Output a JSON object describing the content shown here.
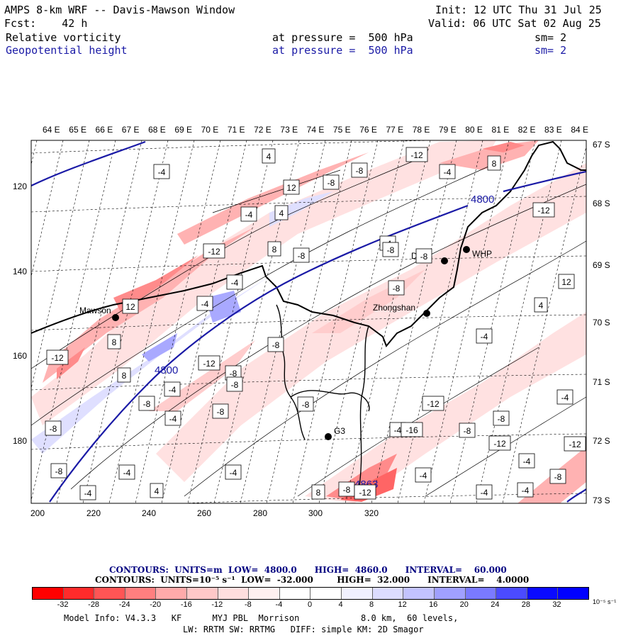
{
  "header": {
    "title": "AMPS 8-km WRF -- Davis-Mawson Window",
    "fcst": "Fcst:    42 h",
    "init": "Init: 12 UTC Thu 31 Jul 25",
    "valid": "Valid: 06 UTC Sat 02 Aug 25",
    "field1": "Relative vorticity",
    "field1_level": "at pressure =  500 hPa",
    "field1_sm": "sm= 2",
    "field2": "Geopotential height",
    "field2_level": "at pressure =  500 hPa",
    "field2_sm": "sm= 2"
  },
  "map": {
    "top_lon_labels": [
      "64 E",
      "65 E",
      "66 E",
      "67 E",
      "68 E",
      "69 E",
      "70 E",
      "71 E",
      "72 E",
      "73 E",
      "74 E",
      "75 E",
      "76 E",
      "77 E",
      "78 E",
      "79 E",
      "80 E",
      "81 E",
      "82 E",
      "83 E",
      "84 E"
    ],
    "lat_labels": [
      "67 S",
      "68 S",
      "69 S",
      "70 S",
      "71 S",
      "72 S",
      "73 S"
    ],
    "x_ticks": [
      "200",
      "220",
      "240",
      "260",
      "280",
      "300",
      "320"
    ],
    "y_ticks": [
      "120",
      "140",
      "160",
      "180"
    ],
    "stations": [
      {
        "name": "Mawson"
      },
      {
        "name": "Davis"
      },
      {
        "name": "WHP"
      },
      {
        "name": "Zhongshan"
      },
      {
        "name": "G3"
      }
    ],
    "height_labels": [
      "4800",
      "4800",
      "4863"
    ],
    "contour_labels": [
      "-4",
      "4",
      "-8",
      "-12",
      "-4",
      "8",
      "12",
      "-8",
      "-4",
      "4",
      "-12",
      "8",
      "-8",
      "-4",
      "-12",
      "-8",
      "-4",
      "-8",
      "12",
      "-4",
      "12",
      "4",
      "8",
      "-8",
      "-4",
      "-12",
      "8",
      "-12",
      "-8",
      "-4",
      "-8",
      "-4",
      "-8",
      "-12",
      "-8",
      "-4",
      "-8",
      "-4",
      "-8",
      "-12",
      "-12",
      "-8",
      "-4",
      "-4",
      "-4",
      "-4",
      "-8",
      "-4",
      "4",
      "8",
      "-8",
      "-4",
      "-4",
      "-16",
      "-12",
      "-8",
      "-8",
      "-8"
    ]
  },
  "contour_info": {
    "line1": "CONTOURS:  UNITS=m  LOW=  4800.0      HIGH=  4860.0      INTERVAL=    60.000",
    "line2": "CONTOURS:  UNITS=10⁻⁵ s⁻¹  LOW=  -32.000        HIGH=  32.000      INTERVAL=    4.0000"
  },
  "colorbar": {
    "colors": [
      "#ff0000",
      "#ff2b2b",
      "#ff5555",
      "#ff7f7f",
      "#ffaaaa",
      "#ffc8c8",
      "#ffdede",
      "#fff0f0",
      "#ffffff",
      "#ffffff",
      "#f0f0ff",
      "#dcdcff",
      "#c3c3ff",
      "#a0a0ff",
      "#7a7aff",
      "#4b4bff",
      "#0a0aff",
      "#0000ff"
    ],
    "tick_labels": [
      "-32",
      "-28",
      "-24",
      "-20",
      "-16",
      "-12",
      "-8",
      "-4",
      "0",
      "4",
      "8",
      "12",
      "16",
      "20",
      "24",
      "28",
      "32"
    ],
    "units": "10⁻⁵ s⁻¹"
  },
  "footer": {
    "line1": "Model Info: V4.3.3   KF      MYJ PBL  Morrison            8.0 km,  60 levels,",
    "line2": "LW: RRTM SW: RRTMG   DIFF: simple KM: 2D Smagor"
  }
}
